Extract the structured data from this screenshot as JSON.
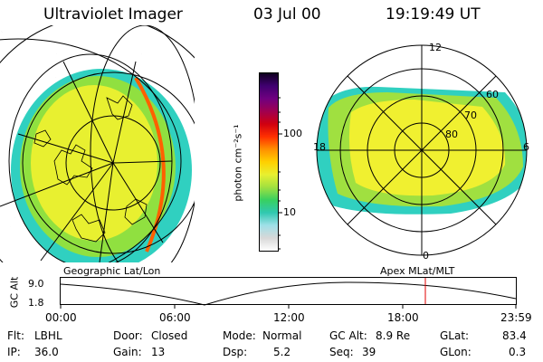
{
  "header": {
    "instrument": "Ultraviolet Imager",
    "date": "03 Jul 00",
    "time": "19:19:49 UT"
  },
  "colorbar": {
    "unit_label": "photon cm⁻²s⁻¹",
    "tick_labels": [
      "100",
      "10"
    ],
    "colors": [
      "#ffffff",
      "#d8d8d8",
      "#9fe0e8",
      "#30c8b0",
      "#38d060",
      "#a0e040",
      "#e8f030",
      "#ffd000",
      "#ff9000",
      "#ff3000",
      "#d00010",
      "#a00050",
      "#700080",
      "#400070",
      "#100020"
    ]
  },
  "left_panel": {
    "caption": "Geographic Lat/Lon",
    "colors": {
      "outer": "#30d0c0",
      "mid": "#90e040",
      "core": "#e8f030",
      "edge": "#ff6000"
    }
  },
  "right_panel": {
    "caption": "Apex MLat/MLT",
    "mlt_labels": [
      "12",
      "18",
      "6",
      "0"
    ],
    "lat_labels": [
      "60",
      "70",
      "80"
    ],
    "colors": {
      "outer": "#30d0c0",
      "mid": "#a0e040",
      "core": "#f0f030"
    }
  },
  "altitude_plot": {
    "ylabel": "GC Alt",
    "y_ticks": [
      "9.0",
      "1.8"
    ],
    "x_ticks": [
      "00:00",
      "06:00",
      "12:00",
      "18:00",
      "23:59"
    ],
    "marker_color": "#e00000"
  },
  "status": {
    "flt_label": "Flt:",
    "flt": "LBHL",
    "ip_label": "IP:",
    "ip": "36.0",
    "door_label": "Door:",
    "door": "Closed",
    "gain_label": "Gain:",
    "gain": "13",
    "mode_label": "Mode:",
    "mode": "Normal",
    "dsp_label": "Dsp:",
    "dsp": "5.2",
    "gcalt_label": "GC Alt:",
    "gcalt": "8.9 Re",
    "seq_label": "Seq:",
    "seq": "39",
    "glat_label": "GLat:",
    "glat": "83.4",
    "glon_label": "GLon:",
    "glon": "0.3"
  }
}
